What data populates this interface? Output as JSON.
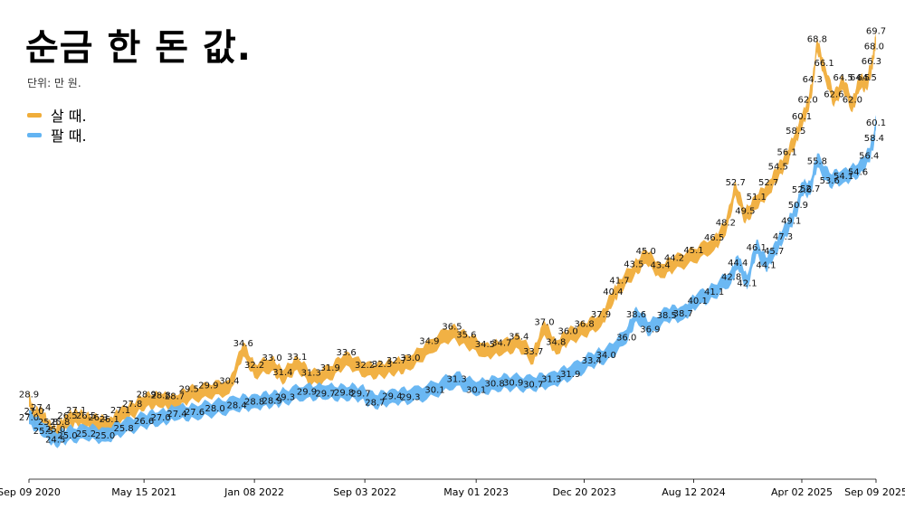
{
  "header": {
    "title": "순금 한 돈 값.",
    "unit": "단위: 만 원."
  },
  "legend": [
    {
      "label": "살 때.",
      "color": "#f0ad3a"
    },
    {
      "label": "팔 때.",
      "color": "#63b4f2"
    }
  ],
  "colors": {
    "buy": "#f0ad3a",
    "sell": "#63b4f2",
    "axis": "#000000"
  },
  "chart_data": {
    "type": "area",
    "title": "순금 한 돈 값.",
    "ylabel": "단위: 만 원.",
    "x_ticks": [
      "Sep 09 2020",
      "May 15 2021",
      "Jan 08 2022",
      "Sep 03 2022",
      "May 01 2023",
      "Dec 20 2023",
      "Aug 12 2024",
      "Apr 02 2025",
      "Sep 09 2025"
    ],
    "ylim": [
      20,
      72
    ],
    "series": [
      {
        "name": "살 때.",
        "points": [
          [
            "2020-09-09",
            28.9
          ],
          [
            "2020-09-20",
            27.0
          ],
          [
            "2020-10-05",
            27.4
          ],
          [
            "2020-10-20",
            25.8
          ],
          [
            "2020-11-05",
            25.0
          ],
          [
            "2020-11-15",
            25.8
          ],
          [
            "2020-12-01",
            26.5
          ],
          [
            "2020-12-20",
            27.1
          ],
          [
            "2021-01-10",
            26.5
          ],
          [
            "2021-02-05",
            26.3
          ],
          [
            "2021-03-01",
            26.1
          ],
          [
            "2021-03-25",
            27.1
          ],
          [
            "2021-04-20",
            27.8
          ],
          [
            "2021-05-20",
            28.9
          ],
          [
            "2021-06-20",
            28.8
          ],
          [
            "2021-07-20",
            28.7
          ],
          [
            "2021-08-20",
            29.5
          ],
          [
            "2021-10-01",
            29.9
          ],
          [
            "2021-11-15",
            30.4
          ],
          [
            "2021-12-15",
            34.6
          ],
          [
            "2022-01-08",
            32.2
          ],
          [
            "2022-02-15",
            33.0
          ],
          [
            "2022-03-10",
            31.4
          ],
          [
            "2022-04-10",
            33.1
          ],
          [
            "2022-05-10",
            31.3
          ],
          [
            "2022-06-20",
            31.9
          ],
          [
            "2022-07-25",
            33.6
          ],
          [
            "2022-09-03",
            32.2
          ],
          [
            "2022-10-10",
            32.3
          ],
          [
            "2022-11-10",
            32.7
          ],
          [
            "2022-12-10",
            33.0
          ],
          [
            "2023-01-20",
            34.9
          ],
          [
            "2023-03-10",
            36.5
          ],
          [
            "2023-04-10",
            35.6
          ],
          [
            "2023-05-20",
            34.5
          ],
          [
            "2023-06-25",
            34.7
          ],
          [
            "2023-08-01",
            35.4
          ],
          [
            "2023-09-01",
            33.7
          ],
          [
            "2023-09-25",
            37.0
          ],
          [
            "2023-10-20",
            34.8
          ],
          [
            "2023-11-15",
            36.0
          ],
          [
            "2023-12-20",
            36.8
          ],
          [
            "2024-01-25",
            37.9
          ],
          [
            "2024-02-20",
            40.4
          ],
          [
            "2024-03-05",
            41.7
          ],
          [
            "2024-04-05",
            43.5
          ],
          [
            "2024-05-01",
            45.0
          ],
          [
            "2024-06-01",
            43.4
          ],
          [
            "2024-07-01",
            44.2
          ],
          [
            "2024-08-12",
            45.1
          ],
          [
            "2024-09-25",
            46.5
          ],
          [
            "2024-10-20",
            48.2
          ],
          [
            "2024-11-10",
            52.7
          ],
          [
            "2024-12-01",
            49.5
          ],
          [
            "2024-12-25",
            51.1
          ],
          [
            "2025-01-20",
            52.7
          ],
          [
            "2025-02-10",
            54.5
          ],
          [
            "2025-03-01",
            56.1
          ],
          [
            "2025-03-20",
            58.5
          ],
          [
            "2025-04-02",
            60.1
          ],
          [
            "2025-04-15",
            62.0
          ],
          [
            "2025-04-25",
            64.3
          ],
          [
            "2025-05-05",
            68.8
          ],
          [
            "2025-05-20",
            66.1
          ],
          [
            "2025-06-10",
            62.6
          ],
          [
            "2025-06-30",
            64.5
          ],
          [
            "2025-07-20",
            62.0
          ],
          [
            "2025-08-05",
            64.5
          ],
          [
            "2025-08-20",
            64.5
          ],
          [
            "2025-08-30",
            66.3
          ],
          [
            "2025-09-05",
            68.0
          ],
          [
            "2025-09-09",
            69.7
          ]
        ]
      },
      {
        "name": "팔 때.",
        "points": [
          [
            "2020-09-09",
            27.0
          ],
          [
            "2020-10-10",
            25.5
          ],
          [
            "2020-11-05",
            24.5
          ],
          [
            "2020-12-01",
            25.0
          ],
          [
            "2021-01-10",
            25.2
          ],
          [
            "2021-02-20",
            25.0
          ],
          [
            "2021-04-01",
            25.8
          ],
          [
            "2021-05-15",
            26.6
          ],
          [
            "2021-06-20",
            27.0
          ],
          [
            "2021-07-25",
            27.4
          ],
          [
            "2021-09-01",
            27.6
          ],
          [
            "2021-10-15",
            28.0
          ],
          [
            "2021-12-01",
            28.4
          ],
          [
            "2022-01-08",
            28.8
          ],
          [
            "2022-02-15",
            28.9
          ],
          [
            "2022-03-15",
            29.3
          ],
          [
            "2022-05-01",
            29.9
          ],
          [
            "2022-06-10",
            29.7
          ],
          [
            "2022-07-20",
            29.8
          ],
          [
            "2022-08-25",
            29.7
          ],
          [
            "2022-09-25",
            28.7
          ],
          [
            "2022-11-01",
            29.4
          ],
          [
            "2022-12-10",
            29.3
          ],
          [
            "2023-02-01",
            30.1
          ],
          [
            "2023-03-20",
            31.3
          ],
          [
            "2023-05-01",
            30.1
          ],
          [
            "2023-06-10",
            30.8
          ],
          [
            "2023-07-20",
            30.9
          ],
          [
            "2023-09-01",
            30.7
          ],
          [
            "2023-10-10",
            31.3
          ],
          [
            "2023-11-20",
            31.9
          ],
          [
            "2024-01-05",
            33.4
          ],
          [
            "2024-02-05",
            34.0
          ],
          [
            "2024-03-20",
            36.0
          ],
          [
            "2024-04-10",
            38.6
          ],
          [
            "2024-05-10",
            36.9
          ],
          [
            "2024-06-15",
            38.5
          ],
          [
            "2024-07-20",
            38.7
          ],
          [
            "2024-08-20",
            40.1
          ],
          [
            "2024-09-25",
            41.1
          ],
          [
            "2024-11-01",
            42.8
          ],
          [
            "2024-11-15",
            44.4
          ],
          [
            "2024-12-05",
            42.1
          ],
          [
            "2024-12-25",
            46.1
          ],
          [
            "2025-01-15",
            44.1
          ],
          [
            "2025-02-01",
            45.7
          ],
          [
            "2025-02-20",
            47.3
          ],
          [
            "2025-03-10",
            49.1
          ],
          [
            "2025-03-25",
            50.9
          ],
          [
            "2025-04-02",
            52.6
          ],
          [
            "2025-04-20",
            52.7
          ],
          [
            "2025-05-05",
            55.8
          ],
          [
            "2025-06-01",
            53.6
          ],
          [
            "2025-07-01",
            54.1
          ],
          [
            "2025-08-01",
            54.6
          ],
          [
            "2025-08-25",
            56.4
          ],
          [
            "2025-09-05",
            58.4
          ],
          [
            "2025-09-09",
            60.1
          ]
        ]
      }
    ]
  }
}
